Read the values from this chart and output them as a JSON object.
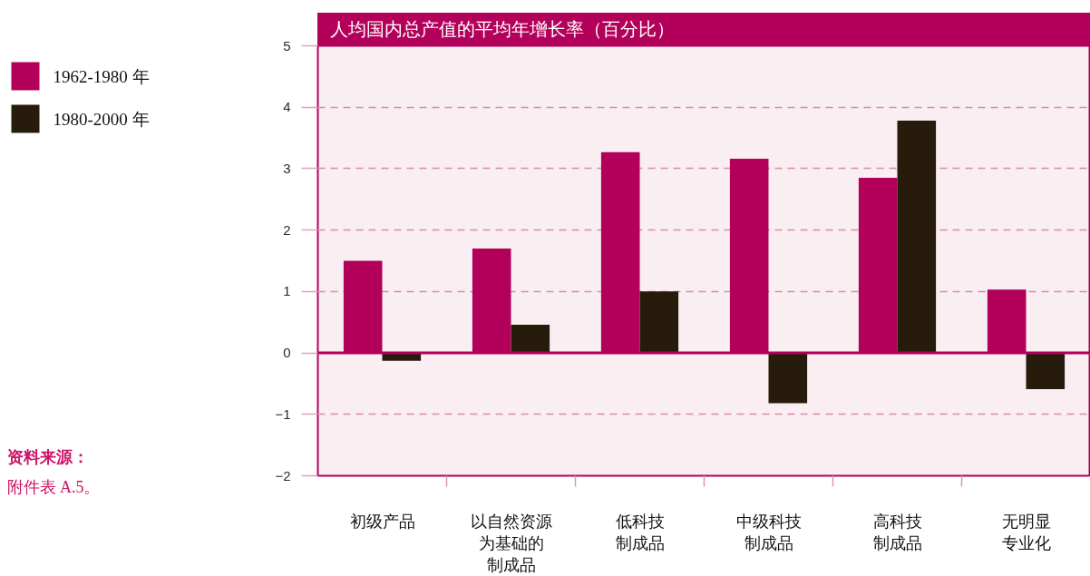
{
  "chart_data": {
    "type": "bar",
    "title": "人均国内总产值的平均年增长率（百分比）",
    "categories": [
      "初级产品",
      "以自然资源为基础的制成品",
      "低科技制成品",
      "中级科技制成品",
      "高科技制成品",
      "无明显专业化"
    ],
    "series": [
      {
        "name": "1962-1980 年",
        "color": "#b3005a",
        "values": [
          1.5,
          1.7,
          3.27,
          3.16,
          2.85,
          1.03
        ]
      },
      {
        "name": "1980-2000 年",
        "color": "#271c0b",
        "values": [
          -0.13,
          0.46,
          1.0,
          -0.82,
          3.78,
          -0.59
        ]
      }
    ],
    "ylim": [
      -2,
      5
    ],
    "yticks": [
      -2,
      -1,
      0,
      1,
      2,
      3,
      4,
      5
    ],
    "grid": "y",
    "legend": "left",
    "ref_lines": [
      {
        "axis": "y",
        "value": 0,
        "color": "#b3005a"
      }
    ],
    "annotations": [
      "资料来源：",
      "附件表 A.5。"
    ]
  }
}
